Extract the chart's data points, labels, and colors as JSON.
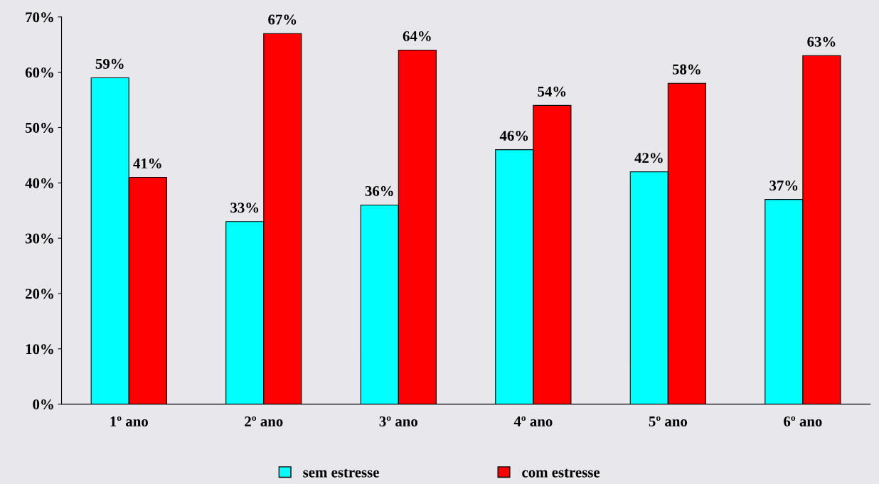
{
  "chart_data": {
    "type": "bar",
    "categories": [
      "1º ano",
      "2º ano",
      "3º ano",
      "4º ano",
      "5º ano",
      "6º ano"
    ],
    "series": [
      {
        "name": "sem estresse",
        "color": "#00ffff",
        "values": [
          59,
          33,
          36,
          46,
          42,
          37
        ],
        "value_labels": [
          "59%",
          "33%",
          "36%",
          "46%",
          "42%",
          "37%"
        ]
      },
      {
        "name": "com estresse",
        "color": "#ff0000",
        "values": [
          41,
          67,
          64,
          54,
          58,
          63
        ],
        "value_labels": [
          "41%",
          "67%",
          "64%",
          "54%",
          "58%",
          "63%"
        ]
      }
    ],
    "ylim": [
      0,
      70
    ],
    "yticks": [
      {
        "value": 0,
        "label": "0%"
      },
      {
        "value": 10,
        "label": "10%"
      },
      {
        "value": 20,
        "label": "20%"
      },
      {
        "value": 30,
        "label": "30%"
      },
      {
        "value": 40,
        "label": "40%"
      },
      {
        "value": 50,
        "label": "50%"
      },
      {
        "value": 60,
        "label": "60%"
      },
      {
        "value": 70,
        "label": "70%"
      }
    ],
    "grid": false,
    "legend": "bottom"
  }
}
